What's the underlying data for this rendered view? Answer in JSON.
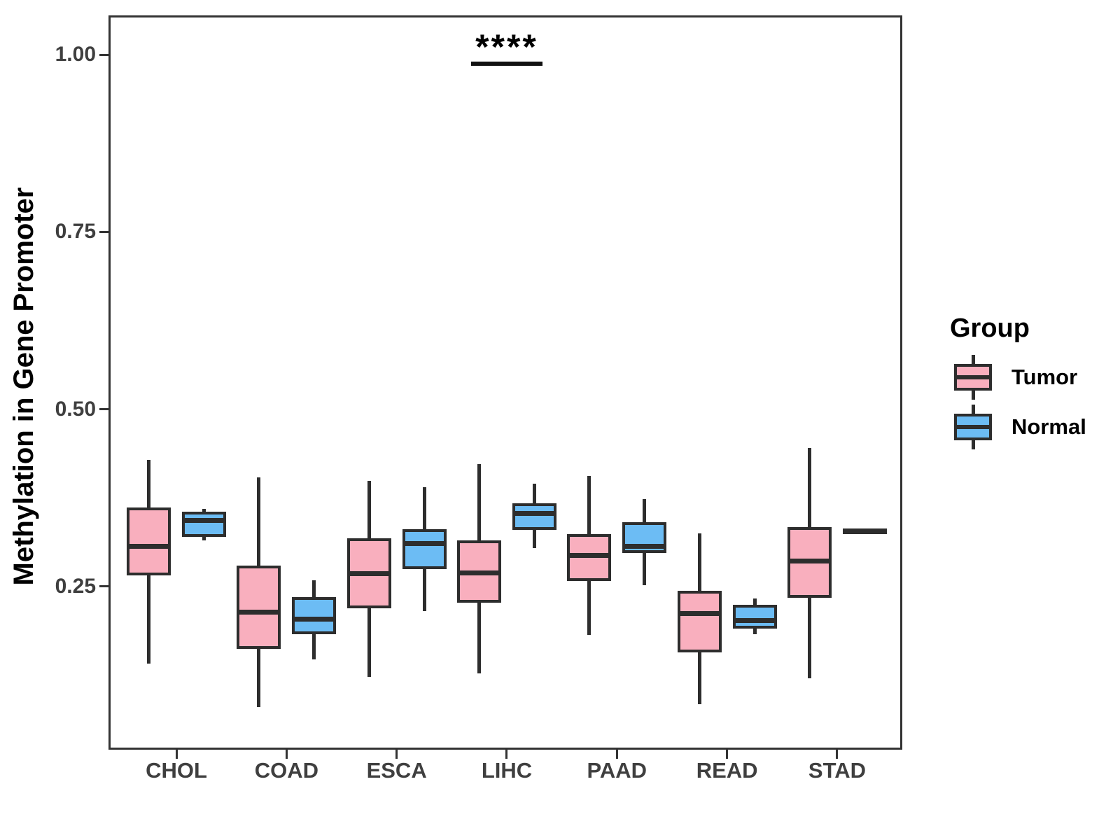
{
  "y_axis": {
    "title": "Methylation in Gene Promoter",
    "tick_labels": [
      "1.00",
      "0.75",
      "0.50",
      "0.25"
    ],
    "tick_values": [
      1.0,
      0.75,
      0.5,
      0.25
    ]
  },
  "x_axis": {
    "categories": [
      "CHOL",
      "COAD",
      "ESCA",
      "LIHC",
      "PAAD",
      "READ",
      "STAD"
    ]
  },
  "legend": {
    "title": "Group",
    "items": [
      {
        "label": "Tumor",
        "color": "#F9AFBE"
      },
      {
        "label": "Normal",
        "color": "#6CBCF4"
      }
    ]
  },
  "annotation": {
    "text": "****",
    "category": "LIHC"
  },
  "chart_data": {
    "type": "boxplot",
    "title": "",
    "xlabel": "",
    "ylabel": "Methylation in Gene Promoter",
    "categories": [
      "CHOL",
      "COAD",
      "ESCA",
      "LIHC",
      "PAAD",
      "READ",
      "STAD"
    ],
    "groups": [
      "Tumor",
      "Normal"
    ],
    "yticks": [
      0.25,
      0.5,
      0.75,
      1.0
    ],
    "ytick_labels": [
      "0.25",
      "0.50",
      "0.75",
      "1.00"
    ],
    "ylim": [
      0.02,
      1.06
    ],
    "grid": false,
    "legend_position": "right",
    "legend_title": "Group",
    "colors": {
      "Tumor": "#F9AFBE",
      "Normal": "#6CBCF4",
      "line": "#2D2D2D"
    },
    "series": [
      {
        "name": "Tumor",
        "color": "#F9AFBE",
        "boxes": [
          {
            "category": "CHOL",
            "whisker_low": 0.141,
            "q1": 0.27,
            "median": 0.307,
            "q3": 0.358,
            "whisker_high": 0.429
          },
          {
            "category": "COAD",
            "whisker_low": 0.08,
            "q1": 0.166,
            "median": 0.214,
            "q3": 0.276,
            "whisker_high": 0.404
          },
          {
            "category": "ESCA",
            "whisker_low": 0.123,
            "q1": 0.223,
            "median": 0.268,
            "q3": 0.314,
            "whisker_high": 0.399
          },
          {
            "category": "LIHC",
            "whisker_low": 0.128,
            "q1": 0.231,
            "median": 0.269,
            "q3": 0.311,
            "whisker_high": 0.423
          },
          {
            "category": "PAAD",
            "whisker_low": 0.182,
            "q1": 0.262,
            "median": 0.294,
            "q3": 0.32,
            "whisker_high": 0.406
          },
          {
            "category": "READ",
            "whisker_low": 0.084,
            "q1": 0.161,
            "median": 0.212,
            "q3": 0.24,
            "whisker_high": 0.325
          },
          {
            "category": "STAD",
            "whisker_low": 0.121,
            "q1": 0.238,
            "median": 0.286,
            "q3": 0.33,
            "whisker_high": 0.445
          }
        ]
      },
      {
        "name": "Normal",
        "color": "#6CBCF4",
        "boxes": [
          {
            "category": "CHOL",
            "whisker_low": 0.315,
            "q1": 0.324,
            "median": 0.343,
            "q3": 0.352,
            "whisker_high": 0.36
          },
          {
            "category": "COAD",
            "whisker_low": 0.147,
            "q1": 0.187,
            "median": 0.204,
            "q3": 0.231,
            "whisker_high": 0.259
          },
          {
            "category": "ESCA",
            "whisker_low": 0.215,
            "q1": 0.279,
            "median": 0.311,
            "q3": 0.327,
            "whisker_high": 0.39
          },
          {
            "category": "LIHC",
            "whisker_low": 0.304,
            "q1": 0.334,
            "median": 0.353,
            "q3": 0.363,
            "whisker_high": 0.395
          },
          {
            "category": "PAAD",
            "whisker_low": 0.252,
            "q1": 0.301,
            "median": 0.307,
            "q3": 0.337,
            "whisker_high": 0.373
          },
          {
            "category": "READ",
            "whisker_low": 0.183,
            "q1": 0.195,
            "median": 0.202,
            "q3": 0.22,
            "whisker_high": 0.233
          },
          {
            "category": "STAD",
            "whisker_low": 0.328,
            "q1": 0.328,
            "median": 0.328,
            "q3": 0.328,
            "whisker_high": 0.328
          }
        ]
      }
    ],
    "annotations": [
      {
        "text": "****",
        "category": "LIHC",
        "line_y": 0.987,
        "spans": "Tumor-Normal"
      }
    ]
  }
}
